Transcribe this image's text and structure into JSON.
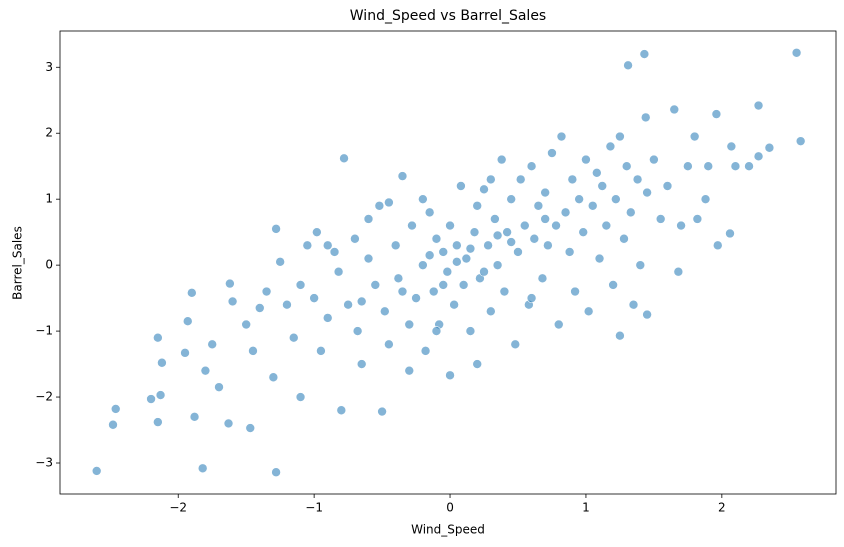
{
  "chart_data": {
    "type": "scatter",
    "title": "Wind_Speed vs Barrel_Sales",
    "x_label": "Wind_Speed",
    "y_label": "Barrel_Sales",
    "color": "#1f77b4",
    "grid": false,
    "xlim": [
      -2.87,
      2.84
    ],
    "ylim": [
      -3.47,
      3.55
    ],
    "xticks": [
      {
        "value": -2,
        "label": "−2"
      },
      {
        "value": -1,
        "label": "−1"
      },
      0,
      1,
      2
    ],
    "yticks": [
      {
        "value": -3,
        "label": "−3"
      },
      {
        "value": -2,
        "label": "−2"
      },
      {
        "value": -1,
        "label": "−1"
      },
      0,
      1,
      2,
      3
    ],
    "x": [
      -2.6,
      -2.48,
      -2.46,
      -2.2,
      -2.15,
      -2.13,
      -2.15,
      -2.12,
      -1.9,
      -1.93,
      -1.95,
      -1.82,
      -1.28,
      -1.88,
      -1.63,
      -1.47,
      -1.7,
      2.55,
      2.58,
      1.43,
      1.31,
      2.27,
      1.65,
      1.96,
      2.35,
      2.06,
      1.68,
      1.97,
      1.44,
      -0.8,
      -0.5,
      -0.78,
      0.0,
      0.2,
      -1.8,
      -1.75,
      -1.6,
      -1.62,
      -1.5,
      -1.45,
      -1.35,
      -1.3,
      -1.25,
      -1.28,
      -1.2,
      -1.15,
      -1.1,
      -1.05,
      -1.0,
      -0.98,
      -0.95,
      -0.9,
      -0.85,
      -0.82,
      -0.75,
      -0.7,
      -0.68,
      -0.65,
      -0.6,
      -0.55,
      -0.52,
      -0.48,
      -0.45,
      -0.4,
      -0.38,
      -0.35,
      -0.3,
      -0.28,
      -0.25,
      -0.2,
      -0.18,
      -0.15,
      -0.12,
      -0.1,
      -0.08,
      -0.05,
      -0.02,
      0.0,
      0.03,
      0.05,
      0.08,
      0.1,
      0.12,
      0.15,
      0.18,
      0.2,
      0.22,
      0.25,
      0.28,
      0.3,
      0.33,
      0.35,
      0.38,
      0.4,
      0.42,
      0.45,
      0.48,
      0.5,
      0.52,
      0.55,
      0.58,
      0.6,
      0.62,
      0.65,
      0.68,
      0.7,
      0.72,
      0.75,
      0.78,
      0.8,
      0.82,
      0.85,
      0.88,
      0.9,
      0.92,
      0.95,
      0.98,
      1.0,
      1.02,
      1.05,
      1.08,
      1.1,
      1.12,
      1.15,
      1.18,
      1.2,
      1.22,
      1.25,
      1.25,
      1.28,
      1.3,
      1.33,
      1.35,
      1.38,
      1.4,
      1.45,
      1.5,
      1.55,
      1.6,
      1.7,
      1.75,
      1.8,
      1.82,
      1.88,
      1.9,
      2.07,
      2.1,
      2.2,
      2.27,
      1.45,
      -0.2,
      -0.45,
      -0.6,
      -0.9,
      -1.1,
      -1.4,
      -0.3,
      -0.1,
      0.6,
      0.3,
      0.05,
      -0.05,
      0.15,
      -0.15,
      0.25,
      0.45,
      0.7,
      0.35,
      -0.35,
      -0.65
    ],
    "values": [
      -3.12,
      -2.42,
      -2.18,
      -2.03,
      -2.38,
      -1.97,
      -1.1,
      -1.48,
      -0.42,
      -0.85,
      -1.33,
      -3.08,
      -3.14,
      -2.3,
      -2.4,
      -2.47,
      -1.85,
      3.22,
      1.88,
      3.2,
      3.03,
      2.42,
      2.36,
      2.29,
      1.78,
      0.48,
      -0.1,
      0.3,
      2.24,
      -2.2,
      -2.22,
      1.62,
      -1.67,
      -1.5,
      -1.6,
      -1.2,
      -0.55,
      -0.28,
      -0.9,
      -1.3,
      -0.4,
      -1.7,
      0.05,
      0.55,
      -0.6,
      -1.1,
      -2.0,
      0.3,
      -0.5,
      0.5,
      -1.3,
      -0.8,
      0.2,
      -0.1,
      -0.6,
      0.4,
      -1.0,
      -1.5,
      0.1,
      -0.3,
      0.9,
      -0.7,
      -1.2,
      0.3,
      -0.2,
      1.35,
      -0.9,
      0.6,
      -0.5,
      0.0,
      -1.3,
      0.8,
      -0.4,
      0.4,
      -0.9,
      0.2,
      -0.1,
      0.6,
      -0.6,
      0.3,
      1.2,
      -0.3,
      0.1,
      -1.0,
      0.5,
      0.9,
      -0.2,
      1.15,
      0.3,
      -0.7,
      0.7,
      0.0,
      1.6,
      -0.4,
      0.5,
      1.0,
      -1.2,
      0.2,
      1.3,
      0.6,
      -0.6,
      1.5,
      0.4,
      0.9,
      -0.2,
      1.1,
      0.3,
      1.7,
      0.6,
      -0.9,
      1.95,
      0.8,
      0.2,
      1.3,
      -0.4,
      1.0,
      0.5,
      1.6,
      -0.7,
      0.9,
      1.4,
      0.1,
      1.2,
      0.6,
      1.8,
      -0.3,
      1.0,
      1.95,
      -1.07,
      0.4,
      1.5,
      0.8,
      -0.6,
      1.3,
      0.0,
      1.1,
      1.6,
      0.7,
      1.2,
      0.6,
      1.5,
      1.95,
      0.7,
      1.0,
      1.5,
      1.8,
      1.5,
      1.5,
      1.65,
      -0.75,
      1.0,
      0.95,
      0.7,
      0.3,
      -0.3,
      -0.65,
      -1.6,
      -1.0,
      -0.5,
      1.3,
      0.05,
      -0.3,
      0.25,
      0.15,
      -0.1,
      0.35,
      0.7,
      0.45,
      -0.4,
      -0.55
    ]
  }
}
